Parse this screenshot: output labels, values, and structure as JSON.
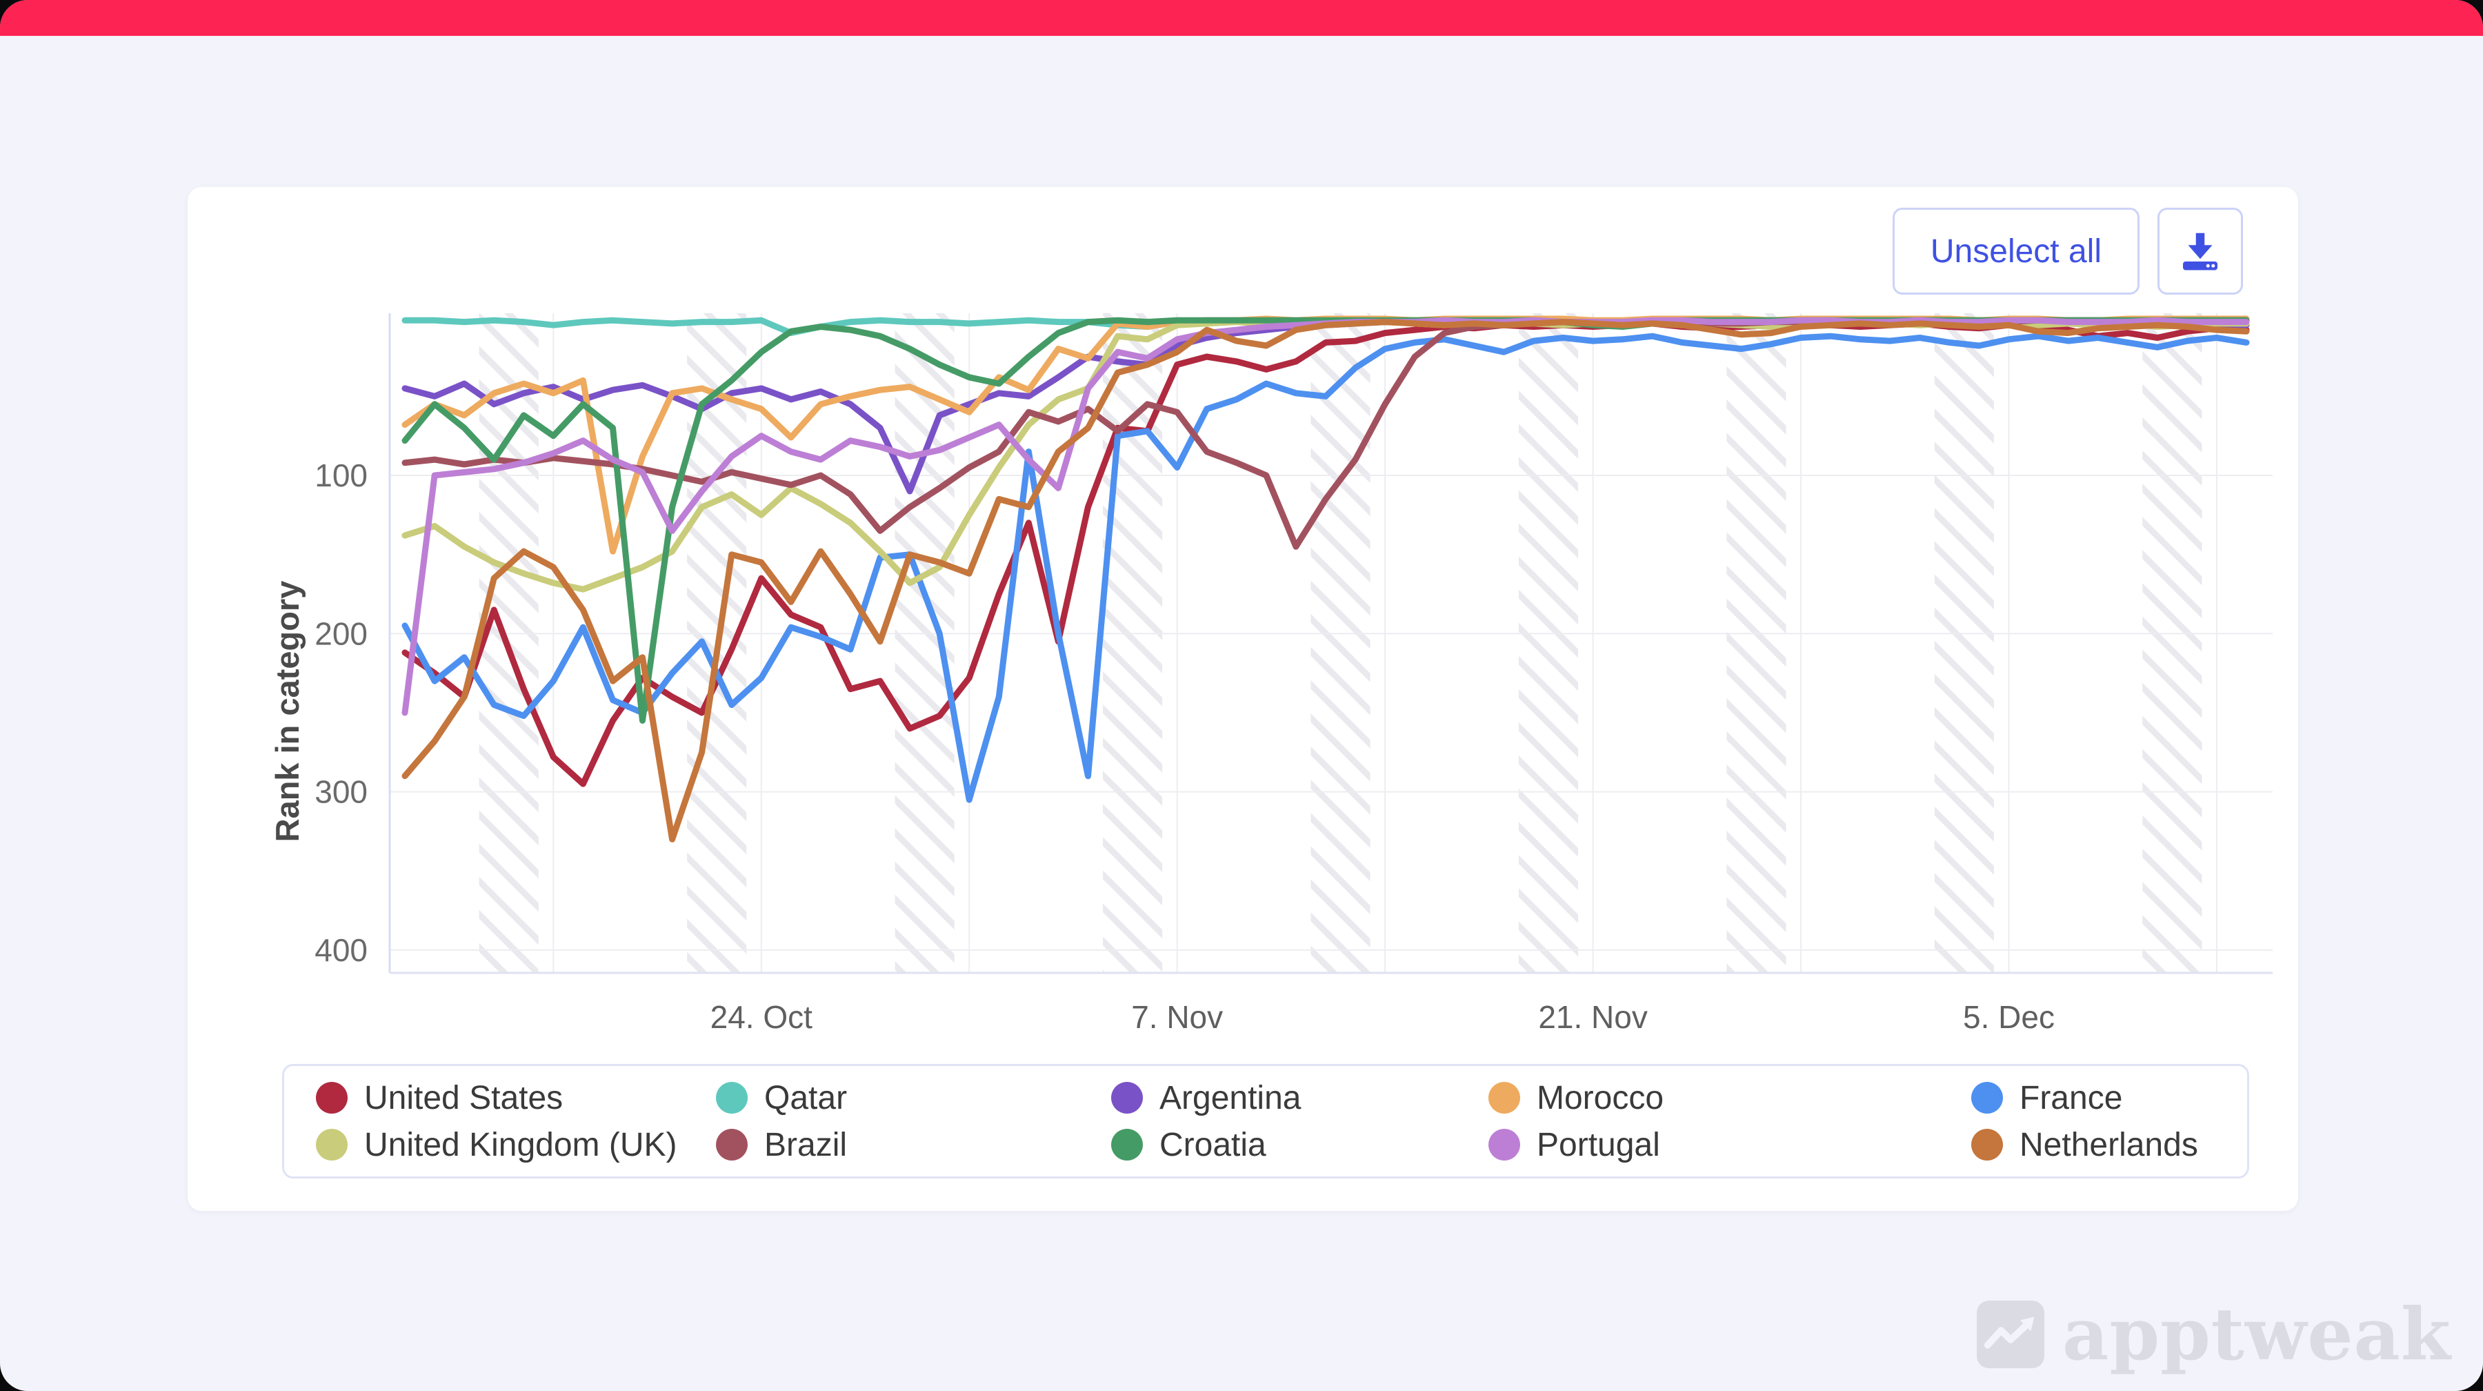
{
  "window": {
    "topbar_color": "#fd2352",
    "page_background": "#f3f3fb"
  },
  "toolbar": {
    "unselect_all_label": "Unselect all",
    "download_icon": "download-tray-icon",
    "accent_color": "#3f51e3"
  },
  "watermark": {
    "text": "apptweak",
    "logo_icon": "apptweak-zigzag-logo-icon",
    "color": "#dbdbe3"
  },
  "chart_data": {
    "type": "line",
    "title": "",
    "xlabel": "",
    "ylabel": "Rank in category",
    "y_inverted": true,
    "ylim": [
      1,
      400
    ],
    "yticks": [
      100,
      200,
      300,
      400
    ],
    "grid": true,
    "legend_position": "bottom",
    "x_start_date": "2022-10-12",
    "x_end_date": "2022-12-13",
    "xticks": [
      {
        "index": 12,
        "label": "24. Oct"
      },
      {
        "index": 26,
        "label": "7. Nov"
      },
      {
        "index": 40,
        "label": "21. Nov"
      },
      {
        "index": 54,
        "label": "5. Dec"
      }
    ],
    "weekend_band_start_indices": [
      3,
      10,
      17,
      24,
      31,
      38,
      45,
      52,
      59
    ],
    "series": [
      {
        "name": "United States",
        "color": "#b0293f",
        "values": [
          212,
          225,
          240,
          185,
          235,
          278,
          295,
          255,
          228,
          240,
          250,
          210,
          165,
          188,
          196,
          235,
          230,
          260,
          252,
          228,
          175,
          130,
          205,
          120,
          70,
          72,
          30,
          25,
          28,
          33,
          28,
          16,
          15,
          10,
          8,
          6,
          7,
          5,
          6,
          5,
          6,
          5,
          4,
          6,
          7,
          6,
          5,
          4,
          5,
          6,
          5,
          4,
          6,
          7,
          5,
          6,
          8,
          12,
          10,
          13,
          9,
          7,
          8
        ]
      },
      {
        "name": "Qatar",
        "color": "#5ec8bd",
        "values": [
          2,
          2,
          3,
          2,
          3,
          5,
          3,
          2,
          3,
          4,
          3,
          3,
          2,
          10,
          6,
          3,
          2,
          3,
          3,
          4,
          3,
          2,
          3,
          3,
          5,
          6,
          3,
          2,
          2,
          2,
          3,
          2,
          2,
          2,
          2,
          2,
          2,
          2,
          2,
          2,
          2,
          3,
          3,
          2,
          2,
          2,
          2,
          2,
          2,
          2,
          2,
          2,
          2,
          2,
          2,
          2,
          2,
          2,
          2,
          2,
          3,
          3,
          2
        ]
      },
      {
        "name": "Argentina",
        "color": "#7a52c7",
        "values": [
          45,
          50,
          42,
          55,
          48,
          44,
          52,
          46,
          43,
          50,
          58,
          48,
          45,
          52,
          47,
          55,
          70,
          110,
          62,
          55,
          48,
          50,
          38,
          25,
          28,
          30,
          18,
          13,
          10,
          8,
          6,
          5,
          4,
          3,
          3,
          3,
          4,
          3,
          3,
          4,
          3,
          3,
          4,
          4,
          3,
          3,
          3,
          4,
          4,
          3,
          3,
          4,
          4,
          3,
          3,
          4,
          4,
          4,
          5,
          5,
          4,
          4,
          5
        ]
      },
      {
        "name": "Morocco",
        "color": "#eeaa5f",
        "values": [
          68,
          55,
          62,
          48,
          42,
          48,
          40,
          148,
          88,
          48,
          45,
          52,
          58,
          76,
          55,
          50,
          46,
          44,
          52,
          60,
          38,
          46,
          20,
          26,
          4,
          6,
          3,
          2,
          2,
          1,
          2,
          1,
          1,
          1,
          2,
          1,
          1,
          1,
          1,
          1,
          2,
          2,
          1,
          1,
          1,
          1,
          2,
          1,
          1,
          1,
          1,
          1,
          1,
          2,
          1,
          1,
          2,
          2,
          1,
          1,
          1,
          1,
          1
        ]
      },
      {
        "name": "France",
        "color": "#4d90f0",
        "values": [
          195,
          230,
          215,
          245,
          252,
          230,
          196,
          242,
          250,
          225,
          205,
          245,
          228,
          196,
          202,
          210,
          152,
          150,
          200,
          305,
          240,
          85,
          200,
          290,
          75,
          72,
          95,
          58,
          52,
          42,
          48,
          50,
          32,
          20,
          16,
          14,
          18,
          22,
          15,
          13,
          15,
          14,
          12,
          16,
          18,
          20,
          17,
          13,
          12,
          14,
          15,
          13,
          16,
          18,
          14,
          12,
          15,
          13,
          16,
          19,
          15,
          13,
          16
        ]
      },
      {
        "name": "United Kingdom (UK)",
        "color": "#c9cc7a",
        "values": [
          138,
          132,
          145,
          155,
          162,
          168,
          172,
          165,
          158,
          148,
          120,
          112,
          125,
          108,
          118,
          130,
          148,
          168,
          158,
          125,
          95,
          68,
          52,
          45,
          12,
          14,
          5,
          4,
          3,
          4,
          3,
          3,
          4,
          3,
          4,
          5,
          4,
          3,
          4,
          5,
          4,
          3,
          4,
          5,
          4,
          5,
          6,
          5,
          4,
          3,
          4,
          5,
          4,
          3,
          4,
          5,
          4,
          5,
          4,
          6,
          5,
          4,
          4
        ]
      },
      {
        "name": "Brazil",
        "color": "#a2525f",
        "values": [
          92,
          90,
          93,
          90,
          92,
          89,
          91,
          93,
          96,
          100,
          104,
          98,
          102,
          106,
          100,
          112,
          135,
          120,
          108,
          95,
          85,
          60,
          66,
          58,
          72,
          55,
          60,
          85,
          92,
          100,
          145,
          115,
          90,
          55,
          25,
          10,
          6,
          5,
          4,
          3,
          3,
          4,
          3,
          3,
          4,
          4,
          3,
          3,
          2,
          3,
          3,
          2,
          2,
          3,
          3,
          2,
          2,
          2,
          3,
          2,
          2,
          2,
          2
        ]
      },
      {
        "name": "Croatia",
        "color": "#459b66",
        "values": [
          78,
          55,
          70,
          90,
          62,
          75,
          55,
          70,
          255,
          120,
          55,
          40,
          22,
          9,
          6,
          8,
          12,
          20,
          30,
          38,
          42,
          25,
          10,
          3,
          2,
          3,
          2,
          2,
          2,
          2,
          2,
          2,
          2,
          2,
          2,
          2,
          2,
          2,
          2,
          3,
          5,
          6,
          4,
          2,
          2,
          2,
          2,
          2,
          2,
          2,
          2,
          2,
          2,
          2,
          2,
          2,
          2,
          2,
          2,
          2,
          2,
          2,
          2
        ]
      },
      {
        "name": "Portugal",
        "color": "#bd7fd5",
        "values": [
          250,
          100,
          98,
          96,
          92,
          86,
          78,
          90,
          98,
          135,
          110,
          88,
          75,
          85,
          90,
          78,
          82,
          88,
          84,
          76,
          68,
          90,
          108,
          45,
          22,
          26,
          14,
          10,
          8,
          6,
          5,
          4,
          3,
          3,
          3,
          2,
          3,
          3,
          2,
          3,
          3,
          3,
          2,
          2,
          3,
          3,
          3,
          2,
          2,
          3,
          3,
          2,
          3,
          3,
          2,
          2,
          3,
          3,
          3,
          2,
          3,
          3,
          3
        ]
      },
      {
        "name": "Netherlands",
        "color": "#c5763c",
        "values": [
          290,
          268,
          240,
          165,
          148,
          158,
          185,
          230,
          215,
          330,
          275,
          150,
          155,
          180,
          148,
          175,
          205,
          150,
          155,
          162,
          115,
          120,
          85,
          70,
          35,
          30,
          22,
          8,
          15,
          18,
          8,
          5,
          4,
          3,
          4,
          5,
          4,
          5,
          4,
          3,
          4,
          5,
          4,
          5,
          8,
          11,
          10,
          6,
          5,
          4,
          5,
          4,
          5,
          6,
          5,
          9,
          10,
          7,
          6,
          5,
          6,
          8,
          9
        ]
      }
    ]
  }
}
